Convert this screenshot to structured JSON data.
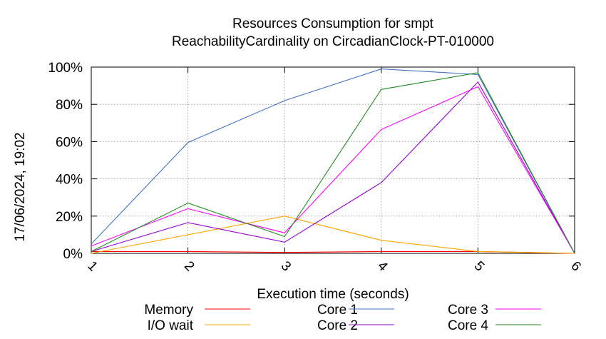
{
  "chart_data": {
    "type": "line",
    "title": "Resources Consumption for smpt",
    "subtitle": "ReachabilityCardinality on CircadianClock-PT-010000",
    "xlabel": "Execution time (seconds)",
    "ylabel": "",
    "timestamp": "17/06/2024, 19:02",
    "x": [
      1,
      2,
      3,
      4,
      5,
      6
    ],
    "xlim": [
      1,
      6
    ],
    "ylim": [
      0,
      100
    ],
    "x_ticks": [
      "1",
      "2",
      "3",
      "4",
      "5",
      "6"
    ],
    "y_ticks": [
      "0%",
      "20%",
      "40%",
      "60%",
      "80%",
      "100%"
    ],
    "grid": true,
    "legend_position": "bottom",
    "series": [
      {
        "name": "Memory",
        "color": "#ff0000",
        "values": [
          1,
          1,
          0.5,
          1,
          1,
          0
        ]
      },
      {
        "name": "I/O wait",
        "color": "#ffa500",
        "values": [
          0,
          10,
          20,
          7,
          1,
          0
        ]
      },
      {
        "name": "Core 1",
        "color": "#4472c4",
        "values": [
          5,
          59.5,
          82,
          99,
          96,
          0
        ]
      },
      {
        "name": "Core 2",
        "color": "#9400d3",
        "values": [
          1,
          16.5,
          6,
          38,
          92,
          0
        ]
      },
      {
        "name": "Core 3",
        "color": "#ff00ff",
        "values": [
          4,
          24,
          11,
          66.5,
          89.5,
          0
        ]
      },
      {
        "name": "Core 4",
        "color": "#228b22",
        "values": [
          1,
          27,
          9,
          88,
          97,
          0
        ]
      }
    ]
  }
}
